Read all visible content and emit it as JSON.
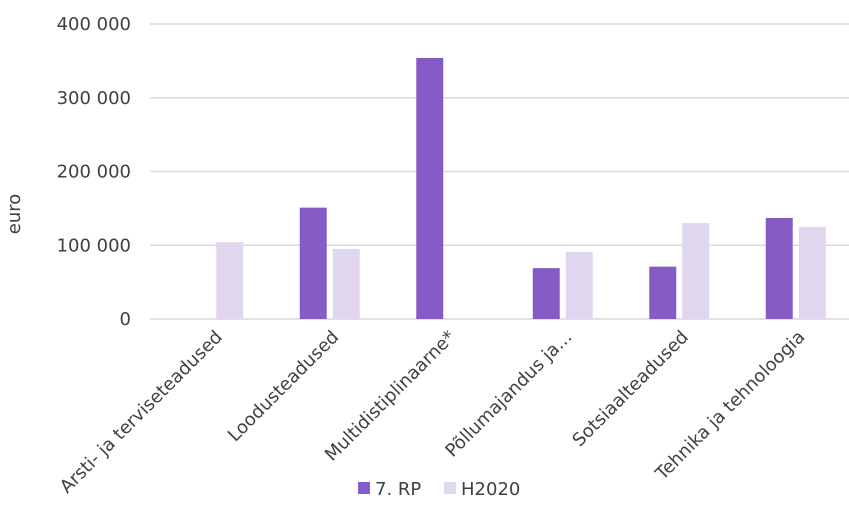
{
  "chart_data": {
    "type": "bar",
    "ylabel": "euro",
    "ylim": [
      0,
      400000
    ],
    "yticks": [
      0,
      100000,
      200000,
      300000,
      400000
    ],
    "ytick_labels": [
      "0",
      "100 000",
      "200 000",
      "300 000",
      "400 000"
    ],
    "categories": [
      "Arsti- ja terviseteadused",
      "Loodusteadused",
      "Multidistiplinaarne*",
      "Põllumajandus ja...",
      "Sotsiaalteadused",
      "Tehnika ja tehnoloogia"
    ],
    "series": [
      {
        "name": "7. RP",
        "color": "#855CC6",
        "values": [
          0,
          151000,
          354000,
          69000,
          71000,
          137000
        ]
      },
      {
        "name": "H2020",
        "color": "#E0D6EE",
        "values": [
          104000,
          95000,
          0,
          91000,
          130000,
          125000
        ]
      }
    ],
    "grid": true,
    "legend_position": "bottom"
  }
}
